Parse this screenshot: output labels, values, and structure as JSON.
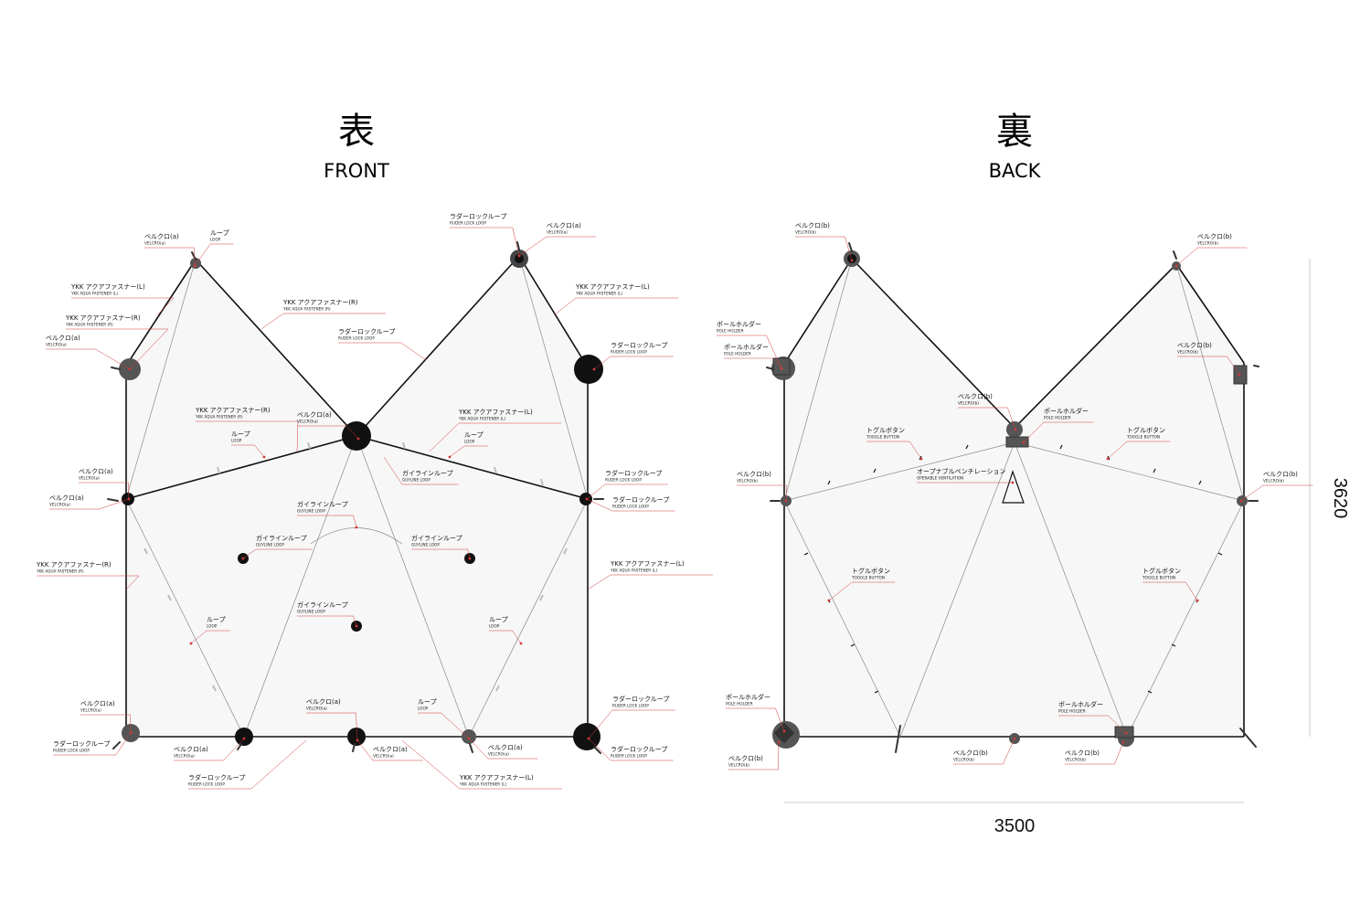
{
  "front": {
    "kanji": "表",
    "title": "FRONT",
    "labels": [
      {
        "jp": "ベルクロ(a)",
        "en": "VELCRO(a)"
      },
      {
        "jp": "ループ",
        "en": "LOOP"
      },
      {
        "jp": "ラダーロックループ",
        "en": "RUDER LOCK LOOP"
      },
      {
        "jp": "ベルクロ(a)",
        "en": "VELCRO(a)"
      },
      {
        "jp": "YKK アクアファスナー(L)",
        "en": "YKK AQUA FASTENER (L)"
      },
      {
        "jp": "YKK アクアファスナー(R)",
        "en": "YKK AQUA FASTENER (R)"
      },
      {
        "jp": "YKK アクアファスナー(R)",
        "en": "YKK AQUA FASTENER (R)"
      },
      {
        "jp": "YKK アクアファスナー(L)",
        "en": "YKK AQUA FASTENER (L)"
      },
      {
        "jp": "ベルクロ(a)",
        "en": "VELCRO(a)"
      },
      {
        "jp": "ラダーロックループ",
        "en": "RUDER LOCK LOOP"
      },
      {
        "jp": "ラダーロックループ",
        "en": "RUDER LOCK LOOP"
      },
      {
        "jp": "YKK アクアファスナー(R)",
        "en": "YKK AQUA FASTENER (R)"
      },
      {
        "jp": "ループ",
        "en": "LOOP"
      },
      {
        "jp": "ベルクロ(a)",
        "en": "VELCRO(a)"
      },
      {
        "jp": "YKK アクアファスナー(L)",
        "en": "YKK AQUA FASTENER (L)"
      },
      {
        "jp": "ループ",
        "en": "LOOP"
      },
      {
        "jp": "ガイラインループ",
        "en": "GUYLINE LOOP"
      },
      {
        "jp": "ベルクロ(a)",
        "en": "VELCRO(a)"
      },
      {
        "jp": "ラダーロックループ",
        "en": "RUDER LOCK LOOP"
      },
      {
        "jp": "ベルクロ(a)",
        "en": "VELCRO(a)"
      },
      {
        "jp": "ラダーロックループ",
        "en": "RUDER LOCK LOOP"
      },
      {
        "jp": "ガイラインループ",
        "en": "GUYLINE LOOP"
      },
      {
        "jp": "ガイラインループ",
        "en": "GUYLINE LOOP"
      },
      {
        "jp": "ガイラインループ",
        "en": "GUYLINE LOOP"
      },
      {
        "jp": "YKK アクアファスナー(R)",
        "en": "YKK AQUA FASTENER (R)"
      },
      {
        "jp": "YKK アクアファスナー(L)",
        "en": "YKK AQUA FASTENER (L)"
      },
      {
        "jp": "ガイラインループ",
        "en": "GUYLINE LOOP"
      },
      {
        "jp": "ループ",
        "en": "LOOP"
      },
      {
        "jp": "ループ",
        "en": "LOOP"
      },
      {
        "jp": "ベルクロ(a)",
        "en": "VELCRO(a)"
      },
      {
        "jp": "ラダーロックループ",
        "en": "RUDER LOCK LOOP"
      },
      {
        "jp": "ラダーロックループ",
        "en": "RUDER LOCK LOOP"
      },
      {
        "jp": "ベルクロ(a)",
        "en": "VELCRO(a)"
      },
      {
        "jp": "ベルクロ(a)",
        "en": "VELCRO(a)"
      },
      {
        "jp": "ループ",
        "en": "LOOP"
      },
      {
        "jp": "ベルクロ(a)",
        "en": "VELCRO(a)"
      },
      {
        "jp": "ラダーロックループ",
        "en": "RUDER LOCK LOOP"
      },
      {
        "jp": "ベルクロ(a)",
        "en": "VELCRO(a)"
      },
      {
        "jp": "ラダーロックループ",
        "en": "RUDER LOCK LOOP"
      },
      {
        "jp": "YKK アクアファスナー(L)",
        "en": "YKK AQUA FASTENER (L)"
      },
      {
        "jp": "YKK アクアファスナー(R)",
        "en": "YKK AQUA FASTENER (R)"
      }
    ]
  },
  "back": {
    "kanji": "裏",
    "title": "BACK",
    "labels": [
      {
        "jp": "ベルクロ(b)",
        "en": "VELCRO(b)"
      },
      {
        "jp": "ベルクロ(b)",
        "en": "VELCRO(b)"
      },
      {
        "jp": "ポールホルダー",
        "en": "POLE HOLDER"
      },
      {
        "jp": "ベルクロ(b)",
        "en": "VELCRO(b)"
      },
      {
        "jp": "ポールホルダー",
        "en": "POLE HOLDER"
      },
      {
        "jp": "ベルクロ(b)",
        "en": "VELCRO(b)"
      },
      {
        "jp": "ポールホルダー",
        "en": "POLE HOLDER"
      },
      {
        "jp": "トグルボタン",
        "en": "TOGGLE BUTTON"
      },
      {
        "jp": "トグルボタン",
        "en": "TOGGLE BUTTON"
      },
      {
        "jp": "オープナブルベンチレーション",
        "en": "OPENABLE VENTILATION"
      },
      {
        "jp": "ベルクロ(b)",
        "en": "VELCRO(b)"
      },
      {
        "jp": "ベルクロ(b)",
        "en": "VELCRO(b)"
      },
      {
        "jp": "トグルボタン",
        "en": "TOGGLE BUTTON"
      },
      {
        "jp": "トグルボタン",
        "en": "TOGGLE BUTTON"
      },
      {
        "jp": "ポールホルダー",
        "en": "POLE HOLDER"
      },
      {
        "jp": "ポールホルダー",
        "en": "POLE HOLDER"
      },
      {
        "jp": "ベルクロ(b)",
        "en": "VELCRO(b)"
      },
      {
        "jp": "ベルクロ(b)",
        "en": "VELCRO(b)"
      },
      {
        "jp": "ベルクロ(b)",
        "en": "VELCRO(b)"
      }
    ]
  },
  "dimensions": {
    "height": "3620",
    "width": "3500"
  },
  "colors": {
    "panel_fill": "#f7f7f7",
    "outline": "#111111",
    "leader": "#d23a3a",
    "fitting": "#1a1a1a",
    "fitting_grey": "#555555",
    "seam": "#8a8a8a"
  }
}
